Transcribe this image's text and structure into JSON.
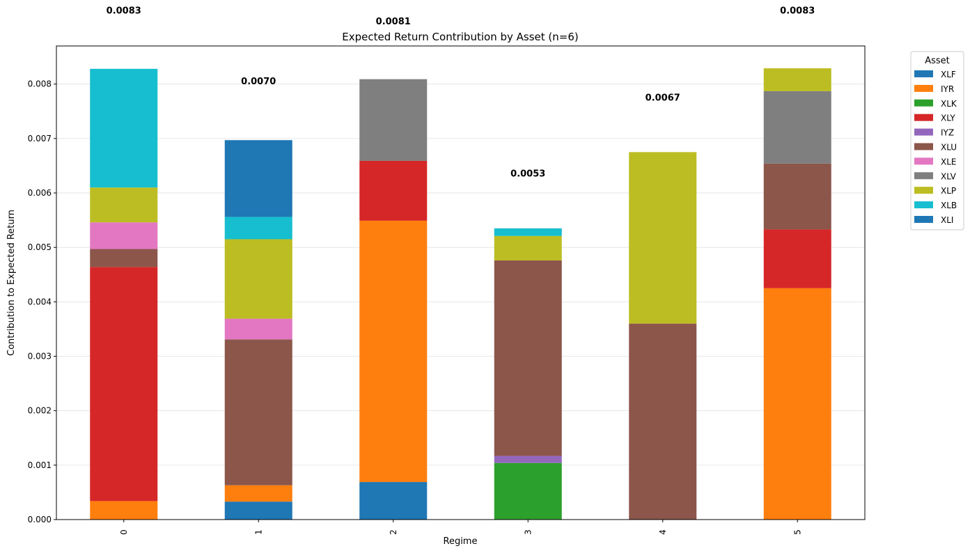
{
  "chart_data": {
    "type": "bar",
    "stacked": true,
    "title": "Expected Return Contribution by Asset (n=6)",
    "xlabel": "Regime",
    "ylabel": "Contribution to Expected Return",
    "categories": [
      "0",
      "1",
      "2",
      "3",
      "4",
      "5"
    ],
    "ylim": [
      0,
      0.0087
    ],
    "yticks": [
      0.0,
      0.001,
      0.002,
      0.003,
      0.004,
      0.005,
      0.006,
      0.007,
      0.008
    ],
    "ytick_labels": [
      "0.000",
      "0.001",
      "0.002",
      "0.003",
      "0.004",
      "0.005",
      "0.006",
      "0.007",
      "0.008"
    ],
    "grid": "horizontal",
    "legend": {
      "title": "Asset",
      "placement": "outside-top-right"
    },
    "series": [
      {
        "name": "XLF",
        "color": "#1f77b4",
        "values": [
          0,
          0.00033,
          0.00069,
          0,
          0,
          0
        ]
      },
      {
        "name": "IYR",
        "color": "#ff7f0e",
        "values": [
          0.00034,
          0.0003,
          0.0048,
          0,
          0,
          0.00425
        ]
      },
      {
        "name": "XLK",
        "color": "#2ca02c",
        "values": [
          0,
          0,
          0,
          0.00104,
          0,
          0
        ]
      },
      {
        "name": "XLY",
        "color": "#d62728",
        "values": [
          0.0043,
          0,
          0.0011,
          0,
          0,
          0.00108
        ]
      },
      {
        "name": "IYZ",
        "color": "#9467bd",
        "values": [
          0,
          0,
          0,
          0.00013,
          0,
          0
        ]
      },
      {
        "name": "XLU",
        "color": "#8c564b",
        "values": [
          0.00033,
          0.00268,
          0,
          0.00359,
          0.0036,
          0.00121
        ]
      },
      {
        "name": "XLE",
        "color": "#e377c2",
        "values": [
          0.00049,
          0.00038,
          0,
          0,
          0,
          0
        ]
      },
      {
        "name": "XLV",
        "color": "#7f7f7f",
        "values": [
          0,
          0,
          0.0015,
          0,
          0,
          0.00133
        ]
      },
      {
        "name": "XLP",
        "color": "#bcbd22",
        "values": [
          0.00064,
          0.00146,
          0,
          0.00045,
          0.00315,
          0.00042
        ]
      },
      {
        "name": "XLB",
        "color": "#17becf",
        "values": [
          0.00218,
          0.00041,
          0,
          0.00014,
          0,
          0
        ]
      },
      {
        "name": "XLI",
        "color": "#1f77b4",
        "values": [
          0,
          0.00141,
          0,
          0,
          0,
          0
        ]
      }
    ],
    "totals": [
      0.0083,
      0.007,
      0.0081,
      0.0053,
      0.0067,
      0.0083
    ],
    "total_labels": [
      "0.0083",
      "0.0070",
      "0.0081",
      "0.0053",
      "0.0067",
      "0.0083"
    ]
  }
}
